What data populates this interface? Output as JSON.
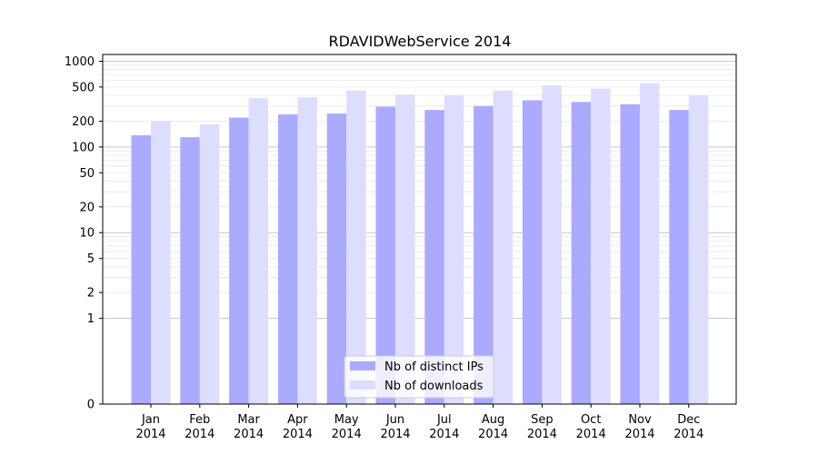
{
  "chart_data": {
    "type": "bar",
    "title": "RDAVIDWebService 2014",
    "xlabel": "",
    "ylabel": "",
    "y_scale": "symlog",
    "ylim": [
      0,
      1200
    ],
    "y_ticks": [
      0,
      1,
      2,
      5,
      10,
      20,
      50,
      100,
      200,
      500,
      1000
    ],
    "grid": true,
    "legend_position": "bottom-center",
    "categories": [
      [
        "Jan",
        "2014"
      ],
      [
        "Feb",
        "2014"
      ],
      [
        "Mar",
        "2014"
      ],
      [
        "Apr",
        "2014"
      ],
      [
        "May",
        "2014"
      ],
      [
        "Jun",
        "2014"
      ],
      [
        "Jul",
        "2014"
      ],
      [
        "Aug",
        "2014"
      ],
      [
        "Sep",
        "2014"
      ],
      [
        "Oct",
        "2014"
      ],
      [
        "Nov",
        "2014"
      ],
      [
        "Dec",
        "2014"
      ]
    ],
    "series": [
      {
        "name": "Nb of distinct IPs",
        "color": "#aaaaff",
        "values": [
          137,
          130,
          220,
          240,
          245,
          295,
          270,
          300,
          350,
          335,
          315,
          270
        ]
      },
      {
        "name": "Nb of downloads",
        "color": "#ddddff",
        "values": [
          200,
          183,
          370,
          380,
          455,
          410,
          400,
          455,
          525,
          480,
          555,
          400
        ]
      }
    ]
  }
}
